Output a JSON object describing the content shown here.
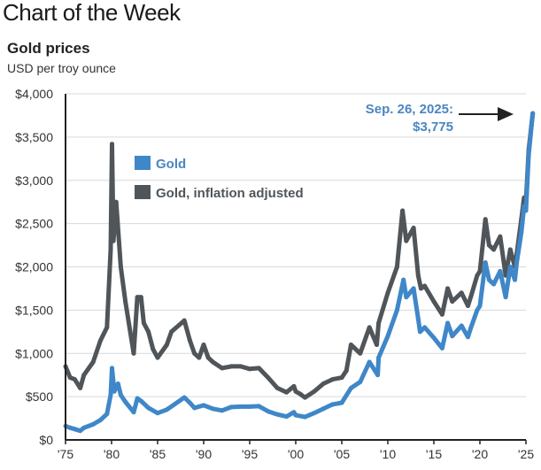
{
  "header": {
    "title": "Chart of the Week"
  },
  "chart_data": {
    "type": "line",
    "title": "Gold prices",
    "subtitle": "USD per troy ounce",
    "xlabel": "",
    "ylabel": "USD per troy ounce",
    "xlim": [
      1975,
      2025
    ],
    "ylim": [
      0,
      4000
    ],
    "grid": true,
    "x_ticks": [
      1975,
      1980,
      1985,
      1990,
      1995,
      2000,
      2005,
      2010,
      2015,
      2020,
      2025
    ],
    "x_tick_labels": [
      "'75",
      "'80",
      "'85",
      "'90",
      "'95",
      "'00",
      "'05",
      "'10",
      "'15",
      "'20",
      "'25"
    ],
    "y_ticks": [
      0,
      500,
      1000,
      1500,
      2000,
      2500,
      3000,
      3500,
      4000
    ],
    "y_tick_labels": [
      "$0",
      "$500",
      "$1,000",
      "$1,500",
      "$2,000",
      "$2,500",
      "$3,000",
      "$3,500",
      "$4,000"
    ],
    "legend_position": "top-left",
    "annotation": {
      "line1": "Sep. 26, 2025:",
      "line2": "$3,775",
      "x": 2025.74,
      "y": 3775
    },
    "series": [
      {
        "name": "Gold",
        "color": "#3f87c8",
        "x": [
          1975,
          1975.5,
          1976,
          1976.6,
          1977,
          1978,
          1978.8,
          1979.5,
          1979.9,
          1980.05,
          1980.3,
          1980.7,
          1981,
          1981.5,
          1982.4,
          1982.8,
          1983.2,
          1984,
          1985,
          1986,
          1987.9,
          1988.5,
          1989,
          1990,
          1991,
          1992,
          1993,
          1994,
          1995,
          1996,
          1997,
          1998,
          1999,
          1999.8,
          2000,
          2001,
          2002,
          2003,
          2004,
          2005,
          2006,
          2007,
          2008,
          2008.9,
          2009,
          2010,
          2011,
          2011.7,
          2012,
          2012.8,
          2013.3,
          2013.5,
          2014,
          2015,
          2015.9,
          2016.5,
          2017,
          2018,
          2018.7,
          2019,
          2019.7,
          2020,
          2020.6,
          2021,
          2021.5,
          2022.2,
          2022.8,
          2023.3,
          2023.8,
          2024,
          2024.5,
          2024.8,
          2025,
          2025.3,
          2025.74
        ],
        "values": [
          160,
          140,
          125,
          105,
          140,
          180,
          230,
          300,
          520,
          830,
          560,
          650,
          520,
          440,
          320,
          480,
          450,
          370,
          310,
          350,
          490,
          430,
          370,
          400,
          360,
          340,
          380,
          385,
          385,
          390,
          330,
          295,
          270,
          320,
          285,
          265,
          310,
          360,
          410,
          430,
          600,
          670,
          900,
          750,
          950,
          1200,
          1500,
          1850,
          1650,
          1750,
          1400,
          1250,
          1300,
          1180,
          1060,
          1350,
          1200,
          1320,
          1190,
          1290,
          1500,
          1550,
          2050,
          1850,
          1800,
          1950,
          1650,
          2000,
          1850,
          2050,
          2400,
          2700,
          2650,
          3300,
          3775
        ]
      },
      {
        "name": "Gold, inflation adjusted",
        "color": "#50555a",
        "x": [
          1975,
          1975.5,
          1976,
          1976.6,
          1977,
          1978,
          1978.8,
          1979.5,
          1979.9,
          1980.05,
          1980.2,
          1980.5,
          1981,
          1981.5,
          1982.4,
          1982.8,
          1983.2,
          1983.5,
          1984,
          1984.5,
          1985,
          1986,
          1986.5,
          1987.9,
          1988.5,
          1989,
          1989.5,
          1990,
          1990.5,
          1991,
          1992,
          1993,
          1994,
          1995,
          1996,
          1997,
          1998,
          1999,
          1999.8,
          2000,
          2000.5,
          2001,
          2002,
          2003,
          2004,
          2005,
          2005.5,
          2006,
          2007,
          2008,
          2008.8,
          2009,
          2010,
          2011,
          2011.6,
          2012,
          2012.8,
          2013.3,
          2013.6,
          2014,
          2015,
          2015.9,
          2016.5,
          2017,
          2018,
          2018.7,
          2019,
          2019.7,
          2020,
          2020.6,
          2021,
          2021.5,
          2022.2,
          2022.8,
          2023.3,
          2023.8,
          2024,
          2024.5,
          2024.8,
          2025,
          2025.3,
          2025.74
        ],
        "values": [
          850,
          720,
          700,
          600,
          750,
          900,
          1150,
          1300,
          2200,
          3420,
          2300,
          2750,
          2000,
          1600,
          1000,
          1650,
          1650,
          1350,
          1250,
          1050,
          950,
          1100,
          1250,
          1380,
          1150,
          1000,
          950,
          1100,
          950,
          900,
          830,
          850,
          850,
          820,
          830,
          720,
          600,
          550,
          620,
          560,
          530,
          490,
          560,
          650,
          700,
          720,
          800,
          1100,
          1000,
          1300,
          1100,
          1350,
          1700,
          2000,
          2650,
          2300,
          2450,
          1900,
          1750,
          1780,
          1600,
          1450,
          1750,
          1600,
          1700,
          1550,
          1650,
          1900,
          1950,
          2550,
          2250,
          2200,
          2350,
          1900,
          2200,
          2000,
          2150,
          2550,
          2800,
          2750,
          3350,
          3775
        ]
      }
    ]
  }
}
